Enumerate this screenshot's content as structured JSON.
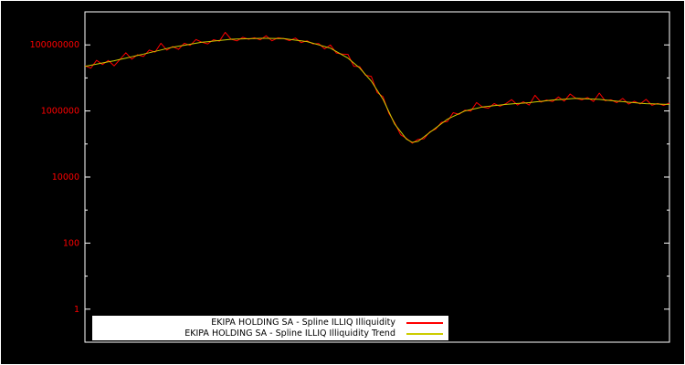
{
  "figure": {
    "background_color": "#000000",
    "axis_color": "#ffffff",
    "tick_label_color": "#ff0000"
  },
  "axes": {
    "y_scale": "log",
    "y_min": 0.1,
    "y_max": 1000000000,
    "y_ticks": [
      {
        "value": 100000000,
        "label": "100000000"
      },
      {
        "value": 1000000,
        "label": "1000000"
      },
      {
        "value": 10000,
        "label": "10000"
      },
      {
        "value": 100,
        "label": "100"
      },
      {
        "value": 1,
        "label": "1"
      }
    ],
    "x_tick_labels": []
  },
  "legend": {
    "position": "bottom-inside",
    "background": "#ffffff",
    "entries": [
      {
        "label": "EKIPA HOLDING SA - Spline ILLIQ Illiquidity",
        "color": "#ff0000"
      },
      {
        "label": "EKIPA HOLDING SA - Spline ILLIQ Illiquidity Trend",
        "color": "#cccc00"
      }
    ]
  },
  "chart_data": {
    "type": "line",
    "title": "",
    "xlabel": "",
    "ylabel": "",
    "y_scale": "log",
    "ylim": [
      0.1,
      1000000000
    ],
    "grid": false,
    "legend_position": "bottom-center-inside",
    "x": {
      "type": "uniform-index",
      "count": 101,
      "note": "no x tick labels visible in figure"
    },
    "series": [
      {
        "name": "EKIPA HOLDING SA - Spline ILLIQ Illiquidity",
        "color": "#ff0000",
        "values": [
          23500000.0,
          19800000.0,
          34100000.0,
          25500000.0,
          33700000.0,
          23200000.0,
          36300000.0,
          57700000.0,
          37100000.0,
          50300000.0,
          44600000.0,
          69400000.0,
          60500000.0,
          112000000.0,
          69600000.0,
          89400000.0,
          73000000.0,
          112000000.0,
          96300000.0,
          146000000.0,
          120000000.0,
          107000000.0,
          144000000.0,
          129000000.0,
          241000000.0,
          148000000.0,
          132000000.0,
          170000000.0,
          148000000.0,
          164000000.0,
          143000000.0,
          189000000.0,
          133000000.0,
          164000000.0,
          155000000.0,
          135000000.0,
          161000000.0,
          117000000.0,
          133000000.0,
          107000000.0,
          110000000.0,
          75700000.0,
          99300000.0,
          56800000.0,
          52600000.0,
          51700000.0,
          22600000.0,
          22000000.0,
          12000000.0,
          11100000.0,
          3590000.0,
          2690000.0,
          850000.0,
          438000.0,
          190000.0,
          148000.0,
          106000.0,
          138000.0,
          144000.0,
          235000.0,
          280000.0,
          455000.0,
          478000.0,
          885000.0,
          785000.0,
          1050000.0,
          990000.0,
          1800000.0,
          1320000.0,
          1210000.0,
          1670000.0,
          1390000.0,
          1660000.0,
          2200000.0,
          1510000.0,
          1900000.0,
          1510000.0,
          2980000.0,
          1850000.0,
          2140000.0,
          1930000.0,
          2640000.0,
          1990000.0,
          3260000.0,
          2400000.0,
          2170000.0,
          2550000.0,
          1940000.0,
          3470000.0,
          2040000.0,
          2170000.0,
          1780000.0,
          2390000.0,
          1620000.0,
          1960000.0,
          1630000.0,
          2240000.0,
          1480000.0,
          1700000.0,
          1470000.0,
          1740000.0
        ]
      },
      {
        "name": "EKIPA HOLDING SA - Spline ILLIQ Illiquidity Trend",
        "color": "#cccc00",
        "values": [
          22400000.0,
          24200000.0,
          26200000.0,
          28300000.0,
          30600000.0,
          33100000.0,
          36300000.0,
          39800000.0,
          43700000.0,
          47900000.0,
          52500000.0,
          57800000.0,
          63700000.0,
          70100000.0,
          77300000.0,
          85100000.0,
          91200000.0,
          97700000.0,
          104700000.0,
          112200000.0,
          120200000.0,
          125300000.0,
          130600000.0,
          136100000.0,
          141900000.0,
          147900000.0,
          150000000.0,
          152100000.0,
          154200000.0,
          156300000.0,
          158500000.0,
          157600000.0,
          156700000.0,
          155800000.0,
          154900000.0,
          147000000.0,
          139600000.0,
          132600000.0,
          125900000.0,
          112200000.0,
          100000000.0,
          89100000.0,
          79400000.0,
          63100000.0,
          50100000.0,
          39800000.0,
          28200000.0,
          20000000.0,
          12600000.0,
          7940000.0,
          4220000.0,
          2240000.0,
          944000.0,
          398000.0,
          237000.0,
          141000.0,
          112000.0,
          120000.0,
          164000.0,
          224000.0,
          304000.0,
          414000.0,
          562000.0,
          681000.0,
          826000.0,
          1000000.0,
          1100000.0,
          1200000.0,
          1320000.0,
          1380000.0,
          1450000.0,
          1510000.0,
          1580000.0,
          1630000.0,
          1680000.0,
          1730000.0,
          1780000.0,
          1860000.0,
          1950000.0,
          2040000.0,
          2140000.0,
          2200000.0,
          2260000.0,
          2330000.0,
          2400000.0,
          2360000.0,
          2320000.0,
          2280000.0,
          2240000.0,
          2150000.0,
          2070000.0,
          1980000.0,
          1910000.0,
          1840000.0,
          1780000.0,
          1720000.0,
          1660000.0,
          1640000.0,
          1620000.0,
          1600000.0,
          1580000.0
        ]
      }
    ]
  }
}
